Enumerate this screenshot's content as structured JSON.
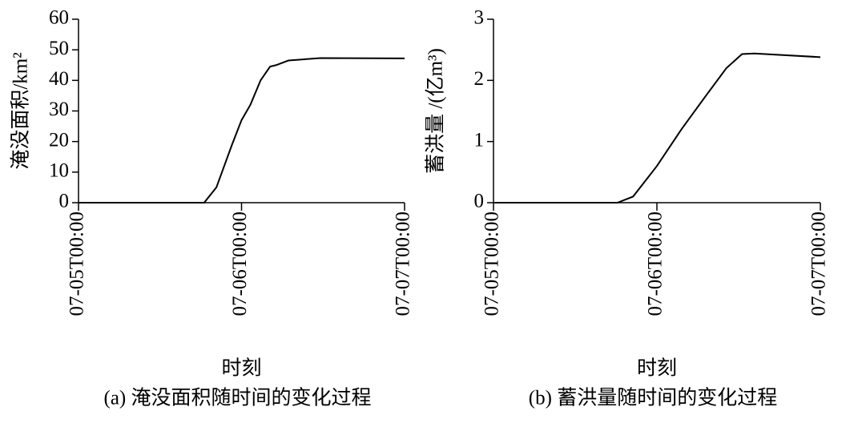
{
  "chart_data": [
    {
      "type": "line",
      "ylabel": "淹没面积/km²",
      "xlabel": "时刻",
      "caption": "(a) 淹没面积随时间的变化过程",
      "x": [
        0,
        18.5,
        20.3,
        22.6,
        24,
        25.3,
        26.8,
        28.2,
        29.1,
        30.9,
        35.6,
        48
      ],
      "values": [
        0,
        0,
        5,
        19,
        27,
        32,
        40,
        44.5,
        45,
        46.5,
        47.3,
        47.2
      ],
      "color": "#000000",
      "xlim": [
        0,
        48
      ],
      "ylim": [
        0,
        60
      ],
      "xticks": [
        {
          "value": 0,
          "label": "07-05T00:00"
        },
        {
          "value": 24,
          "label": "07-06T00:00"
        },
        {
          "value": 48,
          "label": "07-07T00:00"
        }
      ],
      "yticks": [
        0,
        10,
        20,
        30,
        40,
        50,
        60
      ]
    },
    {
      "type": "line",
      "ylabel": "蓄洪量 /(亿m³)",
      "xlabel": "时刻",
      "caption": "(b) 蓄洪量随时间的变化过程",
      "x": [
        0,
        18.2,
        20.5,
        24,
        27.6,
        31.2,
        34.2,
        36.5,
        38.3,
        48
      ],
      "values": [
        0,
        0,
        0.1,
        0.6,
        1.2,
        1.75,
        2.2,
        2.43,
        2.44,
        2.38
      ],
      "color": "#000000",
      "xlim": [
        0,
        48
      ],
      "ylim": [
        0,
        3
      ],
      "xticks": [
        {
          "value": 0,
          "label": "07-05T00:00"
        },
        {
          "value": 24,
          "label": "07-06T00:00"
        },
        {
          "value": 48,
          "label": "07-07T00:00"
        }
      ],
      "yticks": [
        0,
        1,
        2,
        3
      ]
    }
  ]
}
